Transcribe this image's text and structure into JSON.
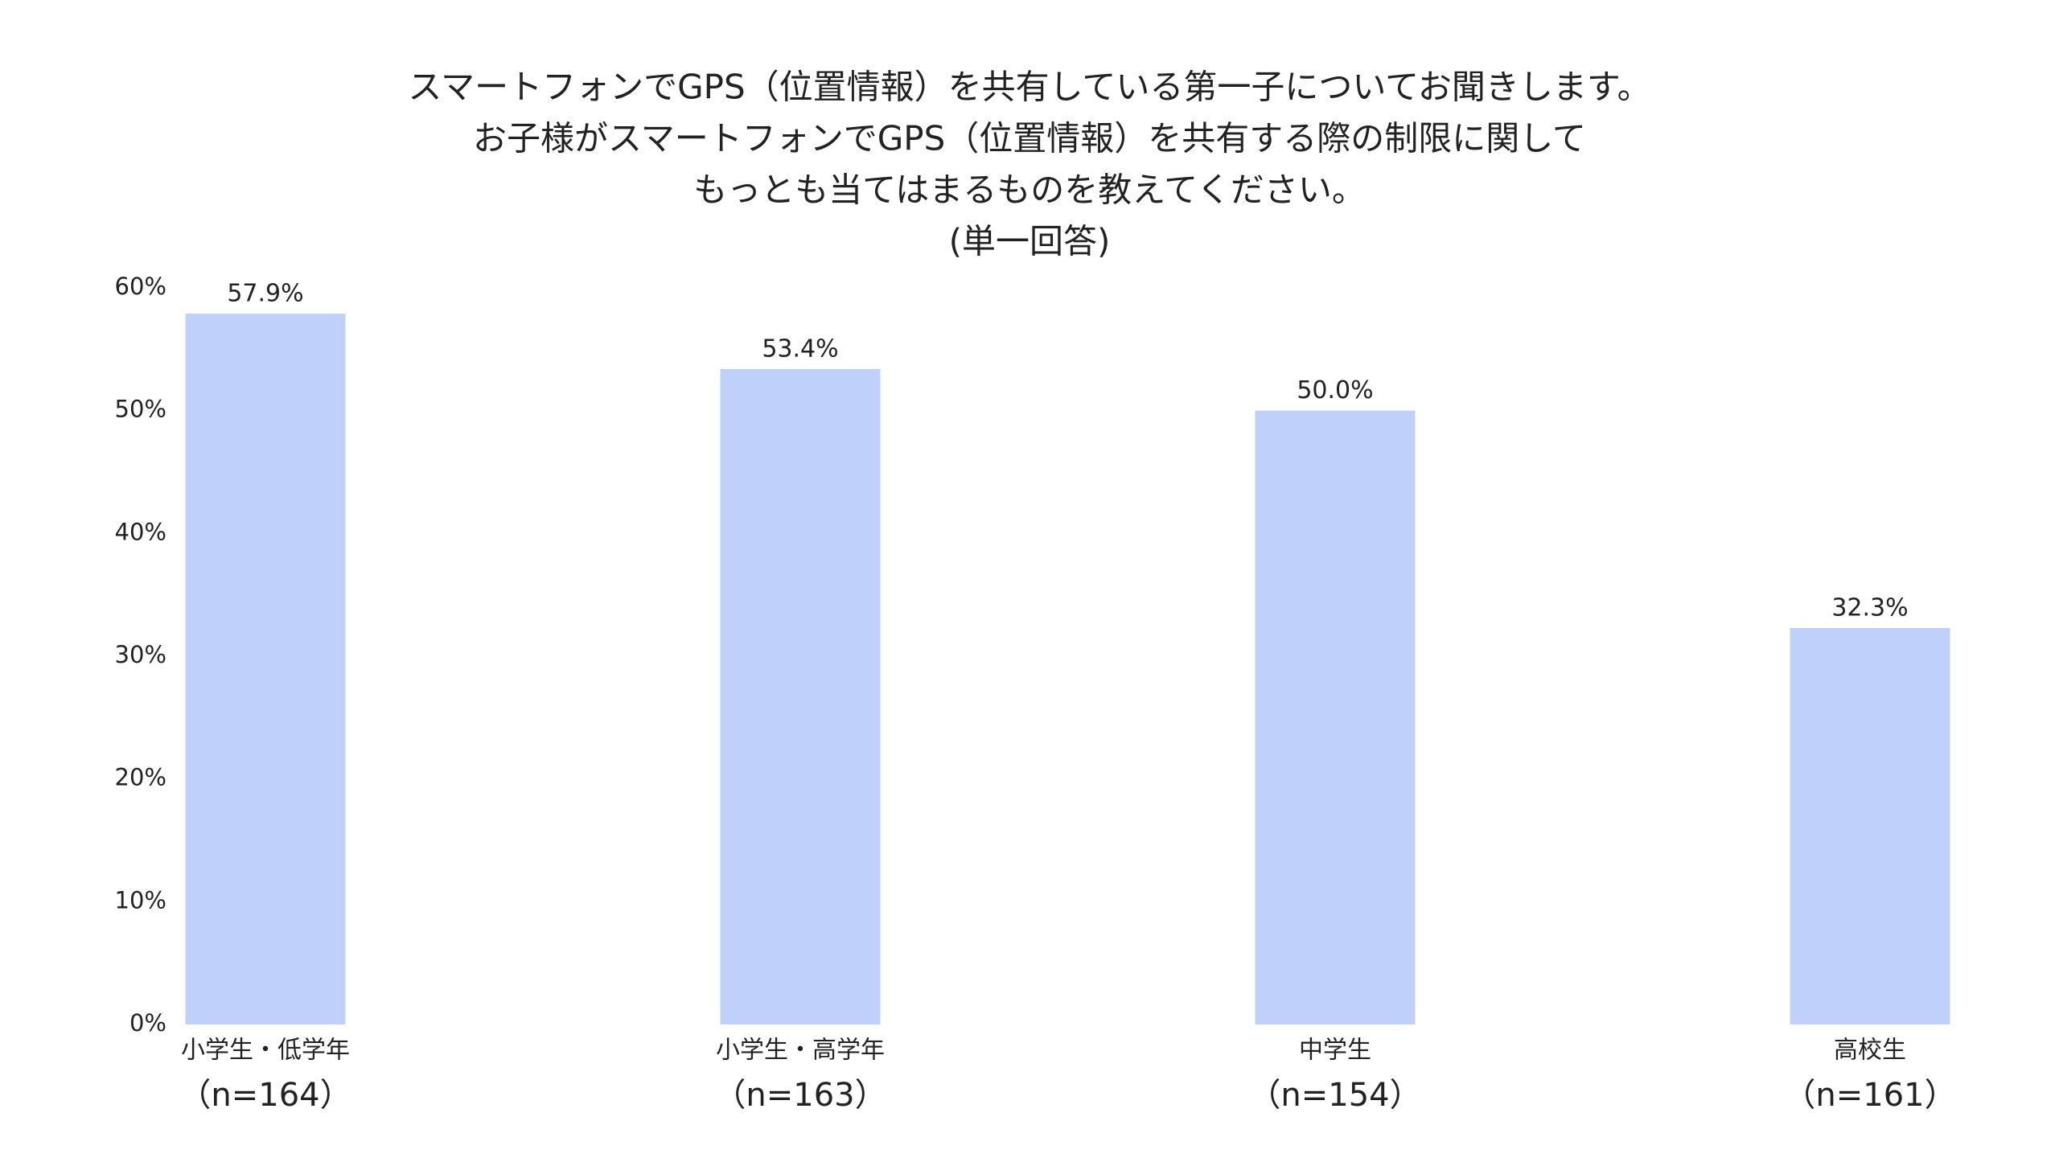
{
  "chart_data": {
    "type": "bar",
    "title": [
      "スマートフォンでGPS（位置情報）を共有している第一子についてお聞きします。",
      "お子様がスマートフォンでGPS（位置情報）を共有する際の制限に関して",
      "もっとも当てはまるものを教えてください。",
      "(単一回答)"
    ],
    "categories": [
      "小学生・低学年",
      "小学生・高学年",
      "中学生",
      "高校生"
    ],
    "sample_sizes": [
      "（n=164）",
      "（n=163）",
      "（n=154）",
      "（n=161）"
    ],
    "values": [
      57.9,
      53.4,
      50.0,
      32.3
    ],
    "value_labels": [
      "57.9%",
      "53.4%",
      "50.0%",
      "32.3%"
    ],
    "color": "#bfd1fa",
    "ylim": [
      0,
      60
    ],
    "yticks": [
      {
        "value": 0,
        "label": "0%"
      },
      {
        "value": 10,
        "label": "10%"
      },
      {
        "value": 20,
        "label": "20%"
      },
      {
        "value": 30,
        "label": "30%"
      },
      {
        "value": 40,
        "label": "40%"
      },
      {
        "value": 50,
        "label": "50%"
      },
      {
        "value": 60,
        "label": "60%"
      }
    ],
    "grid": false
  }
}
